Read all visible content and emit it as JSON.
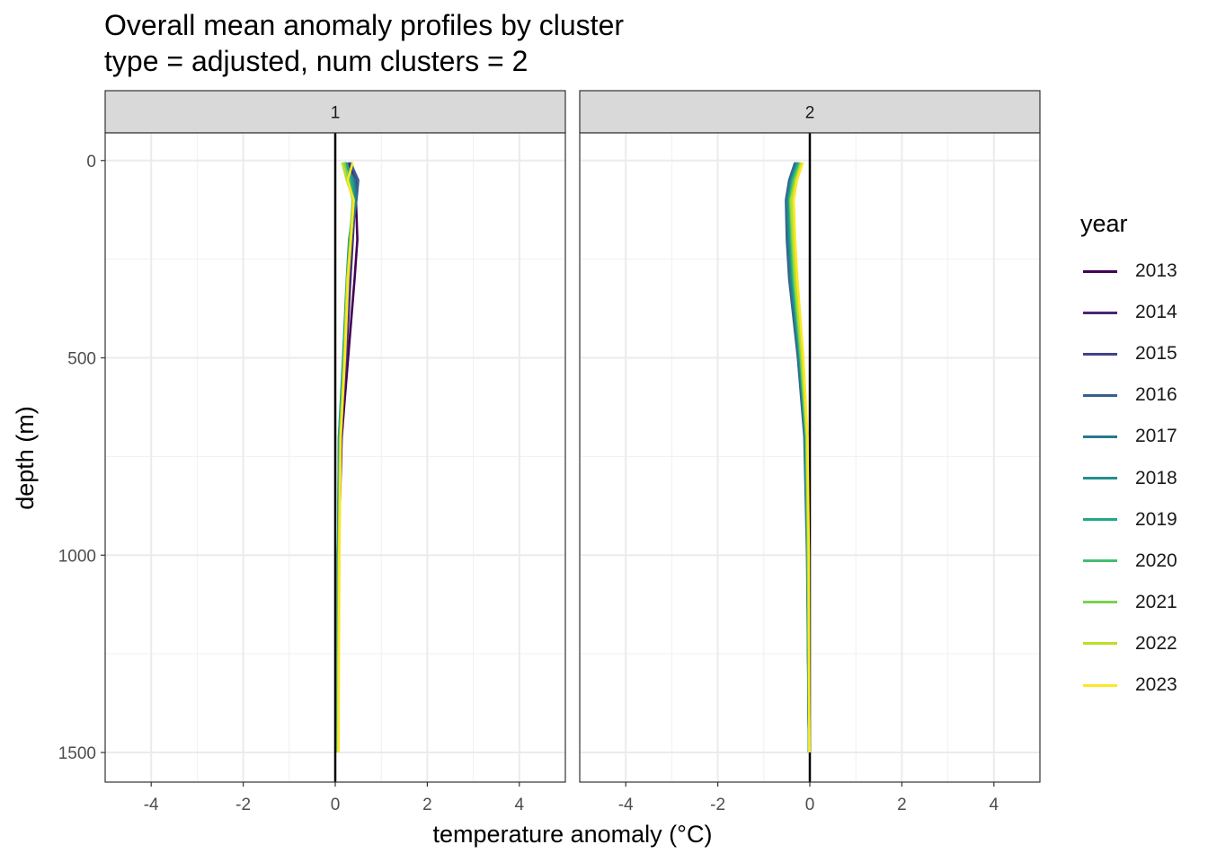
{
  "chart_data": {
    "type": "line",
    "title": "Overall mean anomaly profiles by cluster",
    "subtitle": "type = adjusted, num clusters = 2",
    "xlabel": "temperature anomaly (°C)",
    "ylabel": "depth (m)",
    "xlim": [
      -5,
      5
    ],
    "ylim": [
      1575,
      -70
    ],
    "x_ticks": [
      -4,
      -2,
      0,
      2,
      4
    ],
    "x_tick_labels": [
      "-4",
      "-2",
      "0",
      "2",
      "4"
    ],
    "y_ticks": [
      0,
      500,
      1000,
      1500
    ],
    "y_tick_labels": [
      "0",
      "500",
      "1000",
      "1500"
    ],
    "reference_line_x": 0,
    "grid": true,
    "legend": {
      "title": "year",
      "position": "right",
      "entries": [
        "2013",
        "2014",
        "2015",
        "2016",
        "2017",
        "2018",
        "2019",
        "2020",
        "2021",
        "2022",
        "2023"
      ],
      "colors": [
        "#440154",
        "#482576",
        "#414487",
        "#35608D",
        "#2A788E",
        "#21908C",
        "#22A884",
        "#43BF71",
        "#7AD151",
        "#BBDF27",
        "#FDE725"
      ]
    },
    "depths": [
      5,
      50,
      100,
      200,
      300,
      500,
      700,
      1000,
      1500
    ],
    "panels": [
      {
        "strip": "1",
        "series": [
          {
            "name": "2013",
            "x": [
              0.3,
              0.42,
              0.45,
              0.48,
              0.42,
              0.28,
              0.14,
              0.07,
              0.05
            ]
          },
          {
            "name": "2014",
            "x": [
              0.28,
              0.4,
              0.43,
              0.38,
              0.33,
              0.24,
              0.12,
              0.07,
              0.05
            ]
          },
          {
            "name": "2015",
            "x": [
              0.35,
              0.45,
              0.44,
              0.36,
              0.3,
              0.22,
              0.11,
              0.06,
              0.05
            ]
          },
          {
            "name": "2016",
            "x": [
              0.33,
              0.5,
              0.46,
              0.34,
              0.28,
              0.2,
              0.1,
              0.06,
              0.05
            ]
          },
          {
            "name": "2017",
            "x": [
              0.2,
              0.42,
              0.45,
              0.33,
              0.27,
              0.18,
              0.08,
              0.06,
              0.05
            ]
          },
          {
            "name": "2018",
            "x": [
              0.22,
              0.38,
              0.42,
              0.3,
              0.25,
              0.17,
              0.08,
              0.06,
              0.05
            ]
          },
          {
            "name": "2019",
            "x": [
              0.25,
              0.35,
              0.4,
              0.31,
              0.26,
              0.18,
              0.09,
              0.07,
              0.05
            ]
          },
          {
            "name": "2020",
            "x": [
              0.18,
              0.3,
              0.38,
              0.32,
              0.27,
              0.19,
              0.1,
              0.07,
              0.06
            ]
          },
          {
            "name": "2021",
            "x": [
              0.2,
              0.28,
              0.38,
              0.33,
              0.27,
              0.2,
              0.11,
              0.08,
              0.06
            ]
          },
          {
            "name": "2022",
            "x": [
              0.15,
              0.25,
              0.4,
              0.34,
              0.26,
              0.2,
              0.12,
              0.08,
              0.06
            ]
          },
          {
            "name": "2023",
            "x": [
              0.38,
              0.27,
              0.4,
              0.34,
              0.28,
              0.21,
              0.12,
              0.09,
              0.07
            ]
          }
        ]
      },
      {
        "strip": "2",
        "series": [
          {
            "name": "2013",
            "x": [
              -0.25,
              -0.38,
              -0.45,
              -0.44,
              -0.4,
              -0.25,
              -0.1,
              -0.05,
              -0.02
            ]
          },
          {
            "name": "2014",
            "x": [
              -0.28,
              -0.4,
              -0.48,
              -0.47,
              -0.42,
              -0.24,
              -0.1,
              -0.05,
              -0.02
            ]
          },
          {
            "name": "2015",
            "x": [
              -0.3,
              -0.43,
              -0.5,
              -0.48,
              -0.43,
              -0.25,
              -0.11,
              -0.05,
              -0.02
            ]
          },
          {
            "name": "2016",
            "x": [
              -0.32,
              -0.45,
              -0.52,
              -0.5,
              -0.45,
              -0.26,
              -0.12,
              -0.06,
              -0.02
            ]
          },
          {
            "name": "2017",
            "x": [
              -0.3,
              -0.42,
              -0.5,
              -0.47,
              -0.42,
              -0.24,
              -0.1,
              -0.05,
              -0.02
            ]
          },
          {
            "name": "2018",
            "x": [
              -0.27,
              -0.4,
              -0.47,
              -0.44,
              -0.39,
              -0.22,
              -0.09,
              -0.05,
              -0.02
            ]
          },
          {
            "name": "2019",
            "x": [
              -0.25,
              -0.38,
              -0.45,
              -0.42,
              -0.37,
              -0.21,
              -0.09,
              -0.05,
              -0.02
            ]
          },
          {
            "name": "2020",
            "x": [
              -0.22,
              -0.36,
              -0.43,
              -0.4,
              -0.35,
              -0.2,
              -0.08,
              -0.04,
              -0.01
            ]
          },
          {
            "name": "2021",
            "x": [
              -0.2,
              -0.33,
              -0.42,
              -0.38,
              -0.33,
              -0.19,
              -0.07,
              -0.04,
              -0.01
            ]
          },
          {
            "name": "2022",
            "x": [
              -0.18,
              -0.3,
              -0.4,
              -0.36,
              -0.31,
              -0.17,
              -0.06,
              -0.03,
              -0.01
            ]
          },
          {
            "name": "2023",
            "x": [
              -0.15,
              -0.28,
              -0.35,
              -0.32,
              -0.27,
              -0.14,
              -0.05,
              -0.02,
              -0.01
            ]
          }
        ]
      }
    ]
  }
}
